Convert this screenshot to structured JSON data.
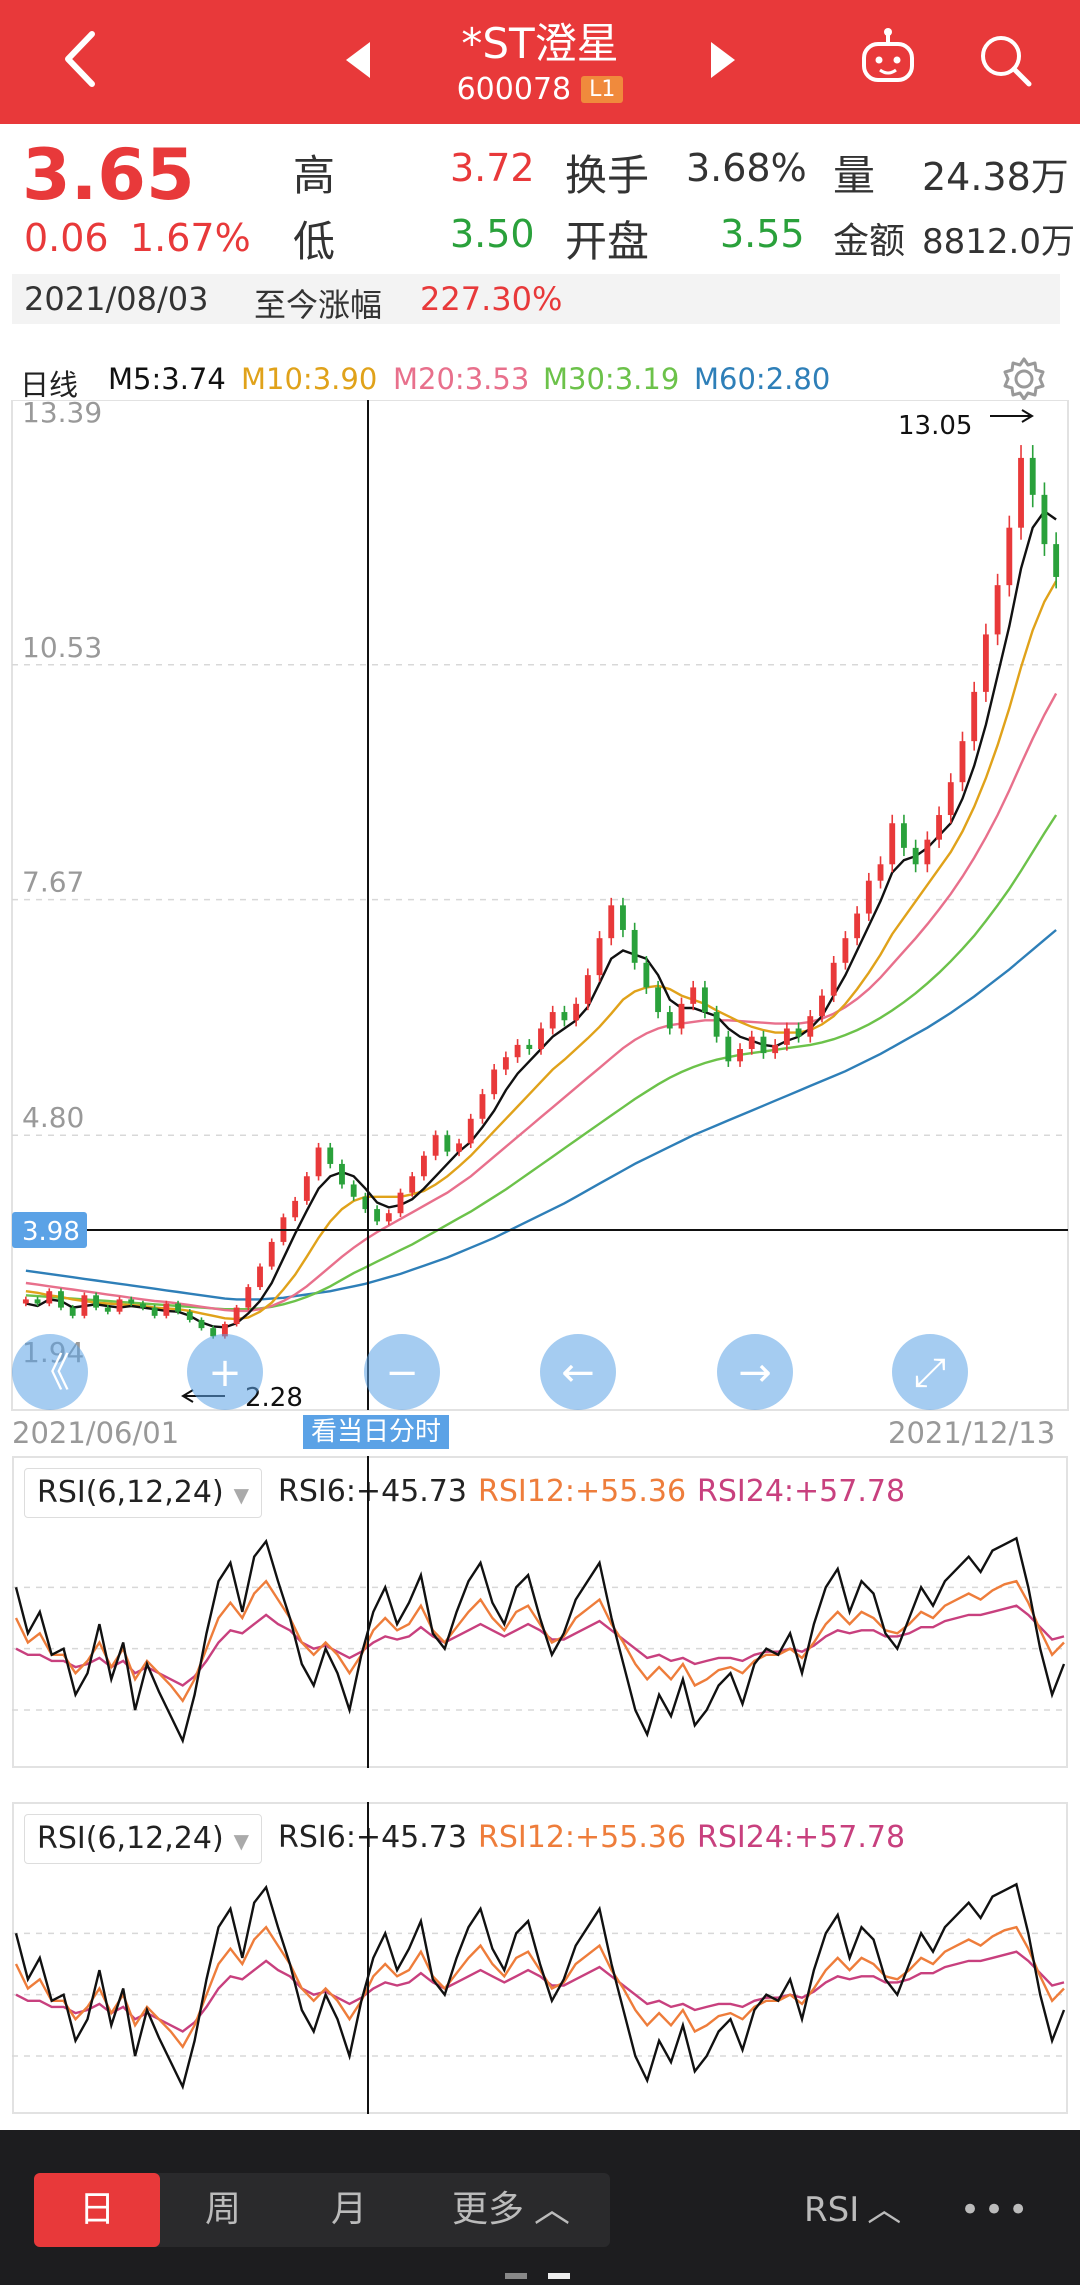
{
  "header": {
    "title": "*ST澄星",
    "code": "600078",
    "level": "L1"
  },
  "quote": {
    "price": "3.65",
    "change": "0.06",
    "change_pct": "1.67%",
    "high_label": "高",
    "high": "3.72",
    "low_label": "低",
    "low": "3.50",
    "turnover_label": "换手",
    "turnover": "3.68%",
    "open_label": "开盘",
    "open": "3.55",
    "volume_label": "量",
    "volume": "24.38万",
    "amount_label": "金额",
    "amount": "8812.0万",
    "date": "2021/08/03",
    "since_label": "至今涨幅",
    "since_value": "227.30%"
  },
  "ma_row": {
    "period": "日线",
    "m5": "M5:3.74",
    "m10": "M10:3.90",
    "m20": "M20:3.53",
    "m30": "M30:3.19",
    "m60": "M60:2.80"
  },
  "colors": {
    "up": "#e8393a",
    "down": "#2aa13b",
    "m5": "#111111",
    "m10": "#e0a21a",
    "m20": "#e8708c",
    "m30": "#6cc24a",
    "m60": "#2e7fb8",
    "rsi6": "#111111",
    "rsi12": "#ee7d3b",
    "rsi24": "#c8407e",
    "highlight": "#5ba2e6"
  },
  "chart_data": {
    "type": "candlestick",
    "ylim": [
      1.94,
      13.39
    ],
    "y_ticks": [
      "13.39",
      "10.53",
      "7.67",
      "4.80",
      "1.94"
    ],
    "crosshair_price": "3.98",
    "x_start": "2021/06/01",
    "x_end": "2021/12/13",
    "max_label": "13.05",
    "min_label": "2.28",
    "crosshair_hint": "看当日分时",
    "close": [
      2.8,
      2.75,
      2.9,
      2.7,
      2.6,
      2.85,
      2.7,
      2.65,
      2.8,
      2.75,
      2.7,
      2.6,
      2.75,
      2.65,
      2.55,
      2.45,
      2.35,
      2.5,
      2.7,
      2.95,
      3.2,
      3.5,
      3.8,
      4.0,
      4.3,
      4.65,
      4.45,
      4.2,
      4.05,
      3.9,
      3.75,
      3.85,
      4.1,
      4.3,
      4.55,
      4.8,
      4.6,
      4.7,
      5.0,
      5.3,
      5.6,
      5.75,
      5.9,
      5.85,
      6.1,
      6.3,
      6.2,
      6.4,
      6.75,
      7.2,
      7.6,
      7.3,
      6.9,
      6.6,
      6.3,
      6.1,
      6.4,
      6.6,
      6.3,
      6.0,
      5.7,
      5.85,
      6.0,
      5.8,
      5.9,
      6.1,
      6.0,
      6.25,
      6.5,
      6.9,
      7.2,
      7.5,
      7.9,
      8.1,
      8.6,
      8.3,
      8.1,
      8.4,
      8.7,
      9.1,
      9.6,
      10.2,
      10.9,
      11.5,
      12.2,
      13.05,
      12.6,
      12.0,
      11.6
    ],
    "ma5": [
      2.75,
      2.72,
      2.8,
      2.78,
      2.7,
      2.72,
      2.74,
      2.72,
      2.7,
      2.72,
      2.7,
      2.68,
      2.66,
      2.65,
      2.6,
      2.52,
      2.47,
      2.46,
      2.51,
      2.63,
      2.78,
      3.0,
      3.3,
      3.6,
      3.88,
      4.15,
      4.3,
      4.35,
      4.3,
      4.15,
      3.98,
      3.92,
      3.95,
      4.02,
      4.15,
      4.3,
      4.45,
      4.6,
      4.72,
      4.9,
      5.1,
      5.35,
      5.55,
      5.7,
      5.85,
      6.0,
      6.1,
      6.2,
      6.36,
      6.65,
      6.95,
      7.05,
      7.0,
      6.95,
      6.75,
      6.45,
      6.35,
      6.35,
      6.3,
      6.25,
      6.1,
      6.0,
      5.95,
      5.9,
      5.88,
      5.95,
      6.0,
      6.1,
      6.25,
      6.5,
      6.75,
      7.05,
      7.35,
      7.65,
      8.0,
      8.15,
      8.2,
      8.3,
      8.45,
      8.6,
      8.9,
      9.3,
      9.8,
      10.4,
      11.0,
      11.7,
      12.2,
      12.4,
      12.3
    ],
    "ma10": [
      2.9,
      2.88,
      2.85,
      2.83,
      2.8,
      2.78,
      2.76,
      2.75,
      2.74,
      2.73,
      2.72,
      2.7,
      2.69,
      2.68,
      2.66,
      2.63,
      2.6,
      2.57,
      2.56,
      2.58,
      2.65,
      2.76,
      2.92,
      3.1,
      3.32,
      3.55,
      3.75,
      3.9,
      4.0,
      4.05,
      4.05,
      4.05,
      4.05,
      4.08,
      4.12,
      4.2,
      4.3,
      4.42,
      4.55,
      4.7,
      4.85,
      5.0,
      5.15,
      5.3,
      5.45,
      5.6,
      5.72,
      5.85,
      5.98,
      6.12,
      6.28,
      6.45,
      6.55,
      6.6,
      6.62,
      6.58,
      6.5,
      6.45,
      6.4,
      6.32,
      6.25,
      6.18,
      6.12,
      6.08,
      6.05,
      6.05,
      6.05,
      6.08,
      6.15,
      6.25,
      6.4,
      6.58,
      6.78,
      7.0,
      7.25,
      7.45,
      7.65,
      7.85,
      8.05,
      8.25,
      8.5,
      8.8,
      9.15,
      9.55,
      10.0,
      10.5,
      10.95,
      11.3,
      11.55
    ],
    "ma20": [
      3.0,
      2.98,
      2.96,
      2.94,
      2.92,
      2.9,
      2.88,
      2.86,
      2.84,
      2.82,
      2.8,
      2.78,
      2.77,
      2.75,
      2.73,
      2.71,
      2.69,
      2.67,
      2.66,
      2.66,
      2.68,
      2.72,
      2.78,
      2.86,
      2.96,
      3.08,
      3.2,
      3.32,
      3.43,
      3.53,
      3.62,
      3.7,
      3.78,
      3.86,
      3.94,
      4.02,
      4.1,
      4.2,
      4.3,
      4.42,
      4.54,
      4.66,
      4.78,
      4.9,
      5.02,
      5.14,
      5.26,
      5.38,
      5.5,
      5.62,
      5.74,
      5.86,
      5.96,
      6.04,
      6.1,
      6.14,
      6.16,
      6.18,
      6.2,
      6.2,
      6.2,
      6.19,
      6.18,
      6.17,
      6.16,
      6.16,
      6.16,
      6.18,
      6.22,
      6.28,
      6.36,
      6.46,
      6.58,
      6.72,
      6.88,
      7.04,
      7.2,
      7.37,
      7.55,
      7.74,
      7.95,
      8.18,
      8.43,
      8.7,
      9.0,
      9.32,
      9.63,
      9.92,
      10.18
    ],
    "ma30": [
      2.85,
      2.84,
      2.83,
      2.82,
      2.81,
      2.8,
      2.79,
      2.78,
      2.77,
      2.76,
      2.75,
      2.74,
      2.73,
      2.72,
      2.71,
      2.7,
      2.69,
      2.68,
      2.68,
      2.68,
      2.69,
      2.71,
      2.74,
      2.78,
      2.83,
      2.89,
      2.96,
      3.04,
      3.12,
      3.19,
      3.26,
      3.33,
      3.4,
      3.47,
      3.55,
      3.63,
      3.71,
      3.79,
      3.87,
      3.96,
      4.05,
      4.14,
      4.24,
      4.34,
      4.44,
      4.54,
      4.64,
      4.74,
      4.84,
      4.94,
      5.04,
      5.14,
      5.24,
      5.33,
      5.42,
      5.5,
      5.57,
      5.63,
      5.68,
      5.72,
      5.75,
      5.78,
      5.8,
      5.82,
      5.84,
      5.86,
      5.88,
      5.9,
      5.93,
      5.97,
      6.02,
      6.08,
      6.15,
      6.23,
      6.32,
      6.42,
      6.53,
      6.65,
      6.78,
      6.92,
      7.07,
      7.23,
      7.41,
      7.6,
      7.8,
      8.02,
      8.25,
      8.48,
      8.7
    ],
    "ma60": [
      3.15,
      3.13,
      3.11,
      3.09,
      3.07,
      3.05,
      3.03,
      3.01,
      2.99,
      2.97,
      2.95,
      2.93,
      2.91,
      2.89,
      2.87,
      2.85,
      2.83,
      2.81,
      2.8,
      2.8,
      2.8,
      2.81,
      2.82,
      2.84,
      2.86,
      2.88,
      2.9,
      2.93,
      2.96,
      2.99,
      3.03,
      3.07,
      3.11,
      3.16,
      3.21,
      3.26,
      3.31,
      3.37,
      3.43,
      3.49,
      3.55,
      3.62,
      3.69,
      3.76,
      3.83,
      3.9,
      3.97,
      4.05,
      4.13,
      4.21,
      4.29,
      4.37,
      4.45,
      4.52,
      4.59,
      4.66,
      4.73,
      4.8,
      4.86,
      4.92,
      4.98,
      5.04,
      5.1,
      5.16,
      5.22,
      5.28,
      5.34,
      5.4,
      5.46,
      5.52,
      5.58,
      5.65,
      5.72,
      5.79,
      5.87,
      5.95,
      6.03,
      6.11,
      6.2,
      6.29,
      6.39,
      6.49,
      6.6,
      6.71,
      6.82,
      6.94,
      7.06,
      7.18,
      7.3
    ]
  },
  "rsi": {
    "indicator_label": "RSI(6,12,24)",
    "rsi6_label": "RSI6:+45.73",
    "rsi12_label": "RSI12:+55.36",
    "rsi24_label": "RSI24:+57.78",
    "rsi6": [
      70,
      55,
      62,
      48,
      50,
      35,
      42,
      58,
      40,
      52,
      30,
      45,
      36,
      28,
      20,
      35,
      55,
      72,
      78,
      62,
      80,
      85,
      72,
      60,
      45,
      38,
      50,
      42,
      30,
      48,
      62,
      70,
      58,
      65,
      74,
      55,
      50,
      62,
      72,
      78,
      65,
      58,
      70,
      74,
      60,
      48,
      55,
      66,
      72,
      78,
      60,
      45,
      30,
      22,
      35,
      28,
      40,
      25,
      30,
      38,
      42,
      32,
      45,
      50,
      48,
      55,
      42,
      58,
      70,
      76,
      62,
      72,
      68,
      55,
      50,
      60,
      70,
      64,
      72,
      76,
      80,
      75,
      82,
      84,
      86,
      70,
      50,
      35,
      45
    ],
    "rsi12": [
      60,
      52,
      55,
      48,
      48,
      42,
      46,
      52,
      44,
      50,
      40,
      46,
      42,
      38,
      33,
      40,
      50,
      60,
      65,
      60,
      68,
      72,
      66,
      60,
      52,
      48,
      52,
      48,
      42,
      48,
      56,
      60,
      56,
      58,
      64,
      56,
      52,
      57,
      62,
      66,
      60,
      56,
      62,
      64,
      58,
      52,
      54,
      60,
      63,
      66,
      58,
      52,
      45,
      40,
      44,
      40,
      45,
      38,
      40,
      43,
      44,
      42,
      46,
      48,
      48,
      50,
      47,
      52,
      58,
      62,
      58,
      62,
      60,
      56,
      55,
      58,
      62,
      60,
      64,
      66,
      68,
      66,
      69,
      71,
      72,
      65,
      56,
      48,
      52
    ],
    "rsi24": [
      50,
      48,
      48,
      46,
      46,
      44,
      45,
      47,
      44,
      46,
      42,
      44,
      42,
      40,
      38,
      41,
      46,
      52,
      56,
      55,
      58,
      61,
      58,
      56,
      52,
      50,
      51,
      49,
      47,
      49,
      52,
      54,
      53,
      54,
      57,
      54,
      52,
      54,
      56,
      58,
      56,
      54,
      56,
      58,
      56,
      53,
      53,
      55,
      57,
      59,
      56,
      53,
      50,
      47,
      48,
      46,
      47,
      45,
      46,
      47,
      47,
      46,
      48,
      49,
      49,
      50,
      49,
      51,
      54,
      56,
      55,
      56,
      56,
      54,
      54,
      55,
      57,
      57,
      59,
      60,
      61,
      61,
      62,
      63,
      64,
      61,
      57,
      53,
      54
    ]
  },
  "nav_buttons": [
    {
      "name": "zoom-out-page-icon",
      "glyph": "《"
    },
    {
      "name": "zoom-in-icon",
      "glyph": "+"
    },
    {
      "name": "zoom-out-icon",
      "glyph": "−"
    },
    {
      "name": "arrow-left-icon",
      "glyph": "←"
    },
    {
      "name": "arrow-right-icon",
      "glyph": "→"
    },
    {
      "name": "expand-icon",
      "glyph": "⤢"
    }
  ],
  "bottom_tabs": {
    "day": "日",
    "week": "周",
    "month": "月",
    "more": "更多",
    "indicator": "RSI",
    "menu": "•••"
  }
}
